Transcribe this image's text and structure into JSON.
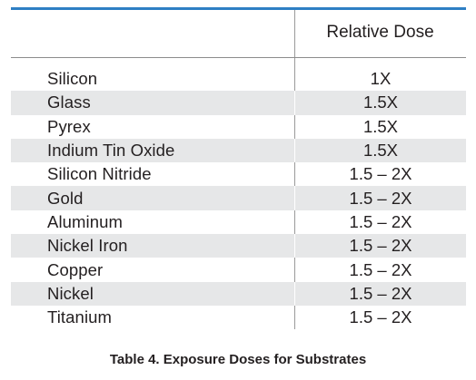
{
  "table": {
    "header": {
      "material": "",
      "dose": "Relative Dose"
    },
    "rows": [
      {
        "material": "Silicon",
        "dose": "1X"
      },
      {
        "material": "Glass",
        "dose": "1.5X"
      },
      {
        "material": "Pyrex",
        "dose": "1.5X"
      },
      {
        "material": "Indium Tin Oxide",
        "dose": "1.5X"
      },
      {
        "material": "Silicon Nitride",
        "dose": "1.5 – 2X"
      },
      {
        "material": "Gold",
        "dose": "1.5 – 2X"
      },
      {
        "material": "Aluminum",
        "dose": "1.5 – 2X"
      },
      {
        "material": "Nickel Iron",
        "dose": "1.5 – 2X"
      },
      {
        "material": "Copper",
        "dose": "1.5 – 2X"
      },
      {
        "material": "Nickel",
        "dose": "1.5 – 2X"
      },
      {
        "material": "Titanium",
        "dose": "1.5 – 2X"
      }
    ]
  },
  "caption": "Table 4. Exposure Doses for Substrates",
  "colors": {
    "top_rule": "#2e7fc4",
    "shaded_row": "#e6e7e8",
    "text": "#231f20"
  }
}
